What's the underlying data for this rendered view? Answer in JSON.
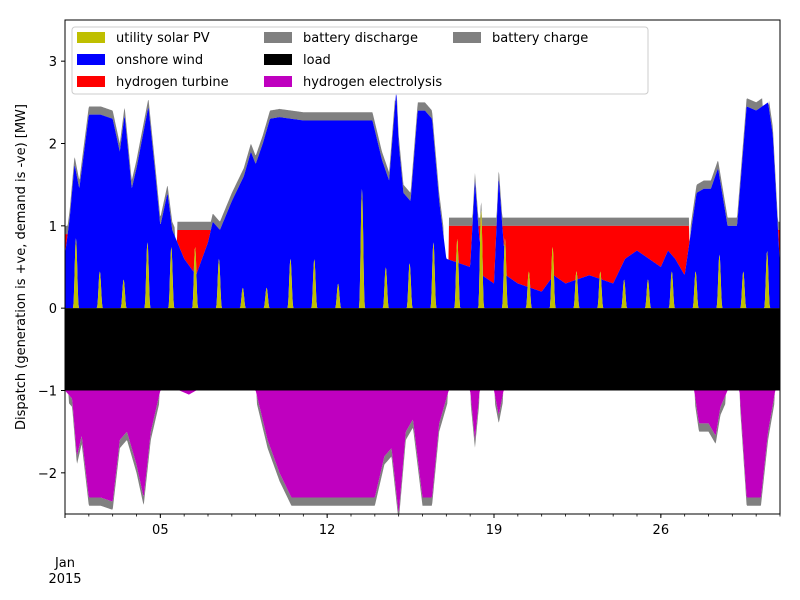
{
  "chart_data": {
    "type": "area",
    "title": "",
    "xlabel": "",
    "ylabel": "Dispatch (generation is +ve, demand is -ve) [MW]",
    "x_range": [
      "2015-01-01",
      "2015-01-31"
    ],
    "ylim": [
      -2.5,
      3.5
    ],
    "yticks": [
      -2,
      -1,
      0,
      1,
      2,
      3
    ],
    "ytick_labels": [
      "−2",
      "−1",
      "0",
      "1",
      "2",
      "3"
    ],
    "xticks": [
      {
        "date": "2015-01-05",
        "label": "05"
      },
      {
        "date": "2015-01-12",
        "label": "12"
      },
      {
        "date": "2015-01-19",
        "label": "19"
      },
      {
        "date": "2015-01-26",
        "label": "26"
      }
    ],
    "x_sublabel": [
      "Jan",
      "2015"
    ],
    "grid": false,
    "legend_position": "top",
    "colors": {
      "solar": "#bfbf00",
      "wind": "#0000ff",
      "turbine": "#ff0000",
      "discharge": "#808080",
      "load": "#000000",
      "electrolysis": "#bf00bf",
      "charge": "#808080"
    },
    "legend": [
      {
        "key": "solar",
        "label": "utility solar PV"
      },
      {
        "key": "wind",
        "label": "onshore wind"
      },
      {
        "key": "turbine",
        "label": "hydrogen turbine"
      },
      {
        "key": "discharge",
        "label": "battery discharge"
      },
      {
        "key": "load",
        "label": "load"
      },
      {
        "key": "electrolysis",
        "label": "hydrogen electrolysis"
      },
      {
        "key": "charge",
        "label": "battery charge"
      }
    ],
    "load_mw": -1.0,
    "series": [
      {
        "key": "solar",
        "name": "utility solar PV",
        "daily_peak_mw": [
          0.85,
          0.45,
          0.35,
          0.8,
          0.75,
          0.75,
          0.6,
          0.25,
          0.25,
          0.6,
          0.6,
          0.3,
          1.45,
          0.5,
          0.55,
          0.8,
          0.85,
          1.2,
          0.85,
          0.45,
          0.75,
          0.45,
          0.45,
          0.35,
          0.35,
          0.45,
          0.45,
          0.65,
          0.45,
          0.7,
          0.45
        ]
      },
      {
        "key": "wind",
        "name": "onshore wind",
        "points_mw": [
          [
            0.0,
            0.65
          ],
          [
            0.2,
            1.1
          ],
          [
            0.4,
            1.75
          ],
          [
            0.6,
            1.45
          ],
          [
            1.0,
            2.35
          ],
          [
            1.5,
            2.35
          ],
          [
            2.0,
            2.3
          ],
          [
            2.3,
            1.9
          ],
          [
            2.5,
            2.35
          ],
          [
            2.8,
            1.45
          ],
          [
            3.0,
            1.7
          ],
          [
            3.2,
            2.0
          ],
          [
            3.5,
            2.45
          ],
          [
            3.8,
            1.6
          ],
          [
            4.0,
            1.0
          ],
          [
            4.3,
            1.4
          ],
          [
            4.5,
            0.95
          ],
          [
            5.0,
            0.6
          ],
          [
            5.5,
            0.4
          ],
          [
            6.0,
            0.8
          ],
          [
            6.2,
            1.05
          ],
          [
            6.5,
            0.95
          ],
          [
            7.0,
            1.3
          ],
          [
            7.5,
            1.6
          ],
          [
            7.8,
            1.9
          ],
          [
            8.0,
            1.75
          ],
          [
            8.3,
            2.0
          ],
          [
            8.6,
            2.3
          ],
          [
            9.0,
            2.32
          ],
          [
            9.5,
            2.3
          ],
          [
            10.0,
            2.28
          ],
          [
            10.5,
            2.28
          ],
          [
            11.0,
            2.28
          ],
          [
            12.0,
            2.28
          ],
          [
            12.9,
            2.28
          ],
          [
            13.3,
            1.8
          ],
          [
            13.6,
            1.55
          ],
          [
            13.9,
            2.65
          ],
          [
            14.0,
            2.0
          ],
          [
            14.2,
            1.4
          ],
          [
            14.5,
            1.3
          ],
          [
            14.8,
            2.4
          ],
          [
            15.1,
            2.4
          ],
          [
            15.4,
            2.3
          ],
          [
            15.7,
            1.3
          ],
          [
            16.0,
            0.6
          ],
          [
            17.0,
            0.5
          ],
          [
            17.2,
            1.55
          ],
          [
            17.5,
            0.4
          ],
          [
            18.0,
            0.3
          ],
          [
            18.2,
            1.6
          ],
          [
            18.5,
            0.4
          ],
          [
            19.0,
            0.3
          ],
          [
            20.0,
            0.2
          ],
          [
            20.5,
            0.4
          ],
          [
            21.0,
            0.3
          ],
          [
            22.0,
            0.4
          ],
          [
            23.0,
            0.3
          ],
          [
            23.5,
            0.6
          ],
          [
            24.0,
            0.7
          ],
          [
            24.5,
            0.6
          ],
          [
            25.0,
            0.5
          ],
          [
            25.3,
            0.7
          ],
          [
            25.6,
            0.6
          ],
          [
            26.0,
            0.4
          ],
          [
            26.5,
            1.4
          ],
          [
            26.8,
            1.45
          ],
          [
            27.1,
            1.45
          ],
          [
            27.4,
            1.7
          ],
          [
            27.8,
            1.0
          ],
          [
            28.2,
            1.0
          ],
          [
            28.6,
            2.45
          ],
          [
            29.0,
            2.4
          ],
          [
            29.5,
            2.5
          ],
          [
            29.7,
            2.1
          ],
          [
            30.0,
            0.5
          ],
          [
            30.5,
            0.45
          ],
          [
            31.0,
            0.45
          ]
        ]
      },
      {
        "key": "turbine",
        "name": "hydrogen turbine",
        "segments_mw": [
          {
            "from": 0.0,
            "to": 0.25,
            "level": 0.9
          },
          {
            "from": 4.7,
            "to": 6.4,
            "level": 0.95
          },
          {
            "from": 16.1,
            "to": 26.2,
            "level": 1.0
          },
          {
            "from": 27.8,
            "to": 28.4,
            "level": 1.0
          },
          {
            "from": 29.8,
            "to": 31.0,
            "level": 0.95
          }
        ]
      },
      {
        "key": "discharge",
        "name": "battery discharge",
        "band_mw": 0.1
      },
      {
        "key": "electrolysis",
        "name": "hydrogen electrolysis",
        "points_mw": [
          [
            0.0,
            -1.0
          ],
          [
            0.3,
            -1.1
          ],
          [
            0.5,
            -1.8
          ],
          [
            0.7,
            -1.55
          ],
          [
            1.0,
            -2.3
          ],
          [
            1.5,
            -2.3
          ],
          [
            2.0,
            -2.35
          ],
          [
            2.3,
            -1.6
          ],
          [
            2.6,
            -1.5
          ],
          [
            3.0,
            -1.9
          ],
          [
            3.3,
            -2.3
          ],
          [
            3.6,
            -1.5
          ],
          [
            4.0,
            -1.0
          ],
          [
            4.8,
            -1.0
          ],
          [
            5.2,
            -1.05
          ],
          [
            5.5,
            -1.0
          ],
          [
            8.0,
            -1.0
          ],
          [
            8.5,
            -1.6
          ],
          [
            9.0,
            -2.0
          ],
          [
            9.5,
            -2.3
          ],
          [
            10.0,
            -2.3
          ],
          [
            11.0,
            -2.3
          ],
          [
            12.0,
            -2.3
          ],
          [
            13.0,
            -2.3
          ],
          [
            13.4,
            -1.8
          ],
          [
            13.7,
            -1.7
          ],
          [
            14.0,
            -2.5
          ],
          [
            14.3,
            -1.5
          ],
          [
            14.6,
            -1.35
          ],
          [
            15.0,
            -2.3
          ],
          [
            15.4,
            -2.3
          ],
          [
            15.7,
            -1.4
          ],
          [
            16.1,
            -1.0
          ],
          [
            17.0,
            -1.0
          ],
          [
            17.2,
            -1.6
          ],
          [
            17.4,
            -1.0
          ],
          [
            18.0,
            -1.0
          ],
          [
            18.2,
            -1.3
          ],
          [
            18.4,
            -1.0
          ],
          [
            26.4,
            -1.0
          ],
          [
            26.6,
            -1.4
          ],
          [
            27.0,
            -1.4
          ],
          [
            27.3,
            -1.55
          ],
          [
            27.5,
            -1.2
          ],
          [
            27.8,
            -1.0
          ],
          [
            28.3,
            -1.0
          ],
          [
            28.6,
            -2.3
          ],
          [
            29.2,
            -2.3
          ],
          [
            29.5,
            -1.5
          ],
          [
            29.8,
            -1.0
          ],
          [
            31.0,
            -1.0
          ]
        ]
      },
      {
        "key": "charge",
        "name": "battery charge",
        "band_mw": 0.1
      }
    ]
  }
}
